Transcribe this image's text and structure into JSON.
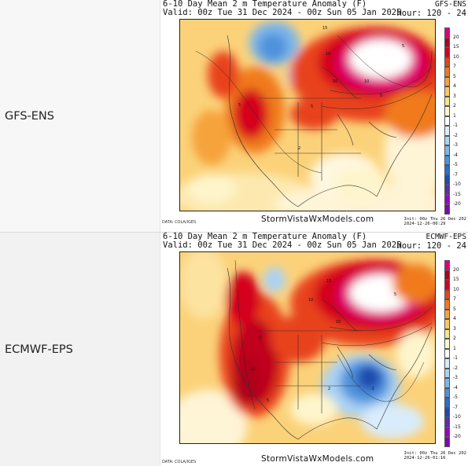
{
  "panels": [
    {
      "model_label": "GFS-ENS",
      "map_title": "6-10 Day Mean 2 m Temperature Anomaly (F)",
      "valid_text": "Valid: 00z Tue 31 Dec 2024 - 00z Sun 05 Jan 2025",
      "model_code": "GFS-ENS",
      "hour_text": "Hour: 120 - 24",
      "source_text": "DATA: COLA/IGES",
      "site_text": "StormVistaWxModels.com",
      "init_text": "Init: 00z Thu 26 Dec 202",
      "stamp_text": "2024-12-26-00:29",
      "contour_labels": [
        "15",
        "10",
        "10",
        "10",
        "5",
        "5",
        "5",
        "5",
        "2"
      ],
      "colors": {
        "hot": "#c0001a",
        "cold": "#1e5fbf"
      }
    },
    {
      "model_label": "ECMWF-EPS",
      "map_title": "6-10 Day Mean 2 m Temperature Anomaly (F)",
      "valid_text": "Valid: 00z Tue 31 Dec 2024 - 00z Sun 05 Jan 2025",
      "model_code": "ECMWF-EPS",
      "hour_text": "Hour: 120 - 24",
      "source_text": "DATA: COLA/IGES",
      "site_text": "StormVistaWxModels.com",
      "init_text": "Init: 00z Thu 26 Dec 202",
      "stamp_text": "2024-12-26-01:16",
      "contour_labels": [
        "15",
        "10",
        "10",
        "10",
        "5",
        "5",
        "5",
        "2",
        "-2"
      ],
      "colors": {
        "hot": "#c0001a",
        "cold": "#1e5fbf"
      }
    }
  ],
  "legend": {
    "ticks": [
      "20",
      "15",
      "10",
      "7",
      "5",
      "4",
      "3",
      "2",
      "1",
      "-1",
      "-2",
      "-3",
      "-4",
      "-5",
      "-7",
      "-10",
      "-15",
      "-20"
    ],
    "colors": [
      "#e0007a",
      "#b0001a",
      "#d4001f",
      "#e8421a",
      "#f07a1e",
      "#f6a33a",
      "#fbc85e",
      "#fde38c",
      "#fef5cc",
      "#ffffff",
      "#d9ecfb",
      "#aad2f4",
      "#7cb6ea",
      "#4f92dc",
      "#2d6dcb",
      "#1c4bb0",
      "#5a2fa8",
      "#9a00c8",
      "#7a0aa8"
    ]
  }
}
